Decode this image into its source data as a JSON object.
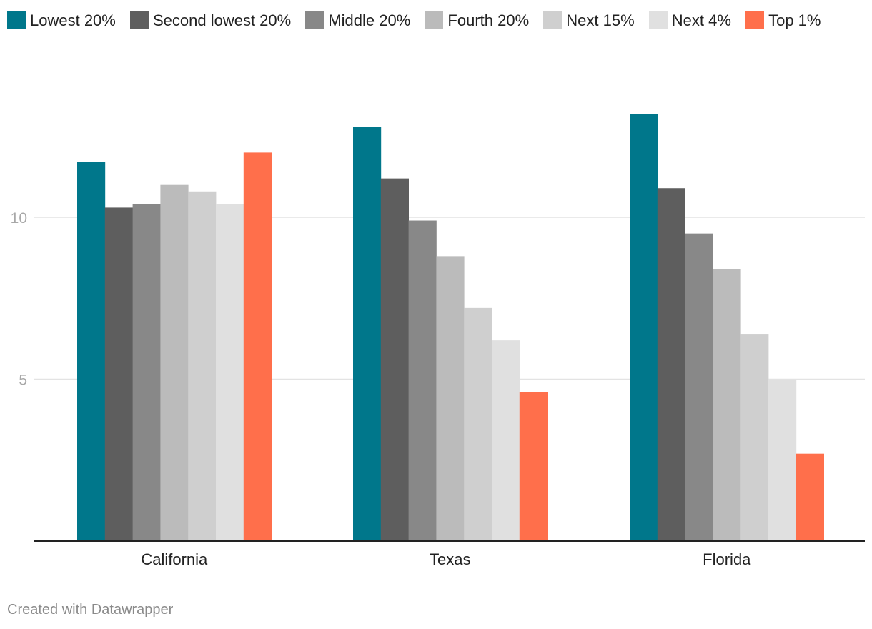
{
  "chart_data": {
    "type": "bar",
    "title": "",
    "xlabel": "",
    "ylabel": "",
    "ylim": [
      0,
      14
    ],
    "yticks": [
      {
        "value": 5,
        "label": "5"
      },
      {
        "value": 10,
        "label": "10"
      }
    ],
    "grid": true,
    "legend_position": "top",
    "categories": [
      "California",
      "Texas",
      "Florida"
    ],
    "series": [
      {
        "name": "Lowest 20%",
        "color": "#00778b",
        "values": [
          11.7,
          12.8,
          13.2
        ]
      },
      {
        "name": "Second lowest 20%",
        "color": "#5e5e5e",
        "values": [
          10.3,
          11.2,
          10.9
        ]
      },
      {
        "name": "Middle 20%",
        "color": "#888888",
        "values": [
          10.4,
          9.9,
          9.5
        ]
      },
      {
        "name": "Fourth 20%",
        "color": "#bbbbbb",
        "values": [
          11.0,
          8.8,
          8.4
        ]
      },
      {
        "name": "Next 15%",
        "color": "#cfcfcf",
        "values": [
          10.8,
          7.2,
          6.4
        ]
      },
      {
        "name": "Next 4%",
        "color": "#e0e0e0",
        "values": [
          10.4,
          6.2,
          5.0
        ]
      },
      {
        "name": "Top 1%",
        "color": "#ff6f4b",
        "values": [
          12.0,
          4.6,
          2.7
        ]
      }
    ]
  },
  "footer": {
    "credit": "Created with Datawrapper"
  }
}
